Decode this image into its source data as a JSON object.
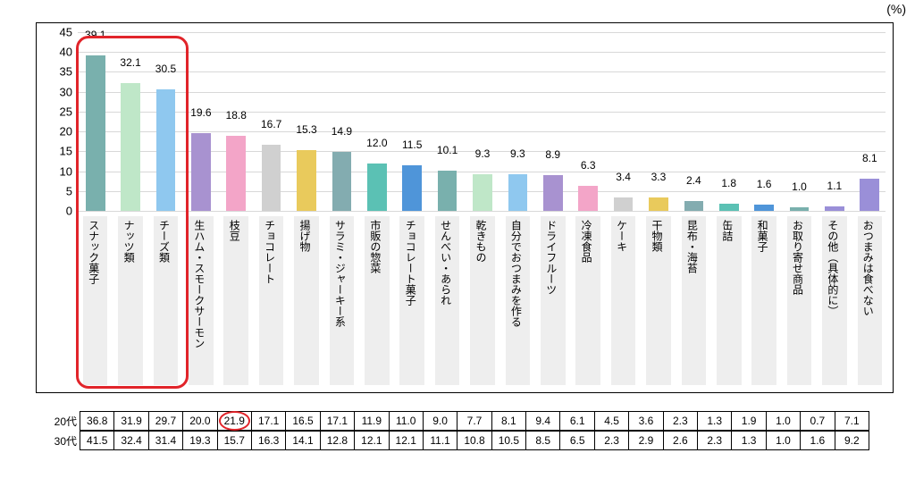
{
  "chart": {
    "type": "bar",
    "unit": "(%)",
    "ylim": [
      0,
      45
    ],
    "ytick_step": 5,
    "bar_width_ratio": 0.55,
    "categories": [
      "スナック菓子",
      "ナッツ類",
      "チーズ類",
      "生ハム・スモークサーモン",
      "枝豆",
      "チョコレート",
      "揚げ物",
      "サラミ・ジャーキー系",
      "市販の惣菜",
      "チョコレート菓子",
      "せんべい・あられ",
      "乾きもの",
      "自分でおつまみを作る",
      "ドライフルーツ",
      "冷凍食品",
      "ケーキ",
      "干物類",
      "昆布・海苔",
      "缶詰",
      "和菓子",
      "お取り寄せ商品",
      "その他（具体的に）",
      "おつまみは食べない"
    ],
    "values": [
      39.1,
      32.1,
      30.5,
      19.6,
      18.8,
      16.7,
      15.3,
      14.9,
      12.0,
      11.5,
      10.1,
      9.3,
      9.3,
      8.9,
      6.3,
      3.4,
      3.3,
      2.4,
      1.8,
      1.6,
      1.0,
      1.1,
      8.1
    ],
    "bar_colors": [
      "#79b0ad",
      "#bfe7c8",
      "#8fc8ef",
      "#a892d0",
      "#f3a5c8",
      "#d0d0d0",
      "#e9ca5c",
      "#83acb0",
      "#5bc1b4",
      "#4f95d9",
      "#79b0ad",
      "#bfe7c8",
      "#8fc8ef",
      "#a892d0",
      "#f3a5c8",
      "#d0d0d0",
      "#e9ca5c",
      "#83acb0",
      "#5bc1b4",
      "#4f95d9",
      "#79b0ad",
      "#9a8fd8",
      "#9a8fd8"
    ],
    "label_bg": "#eeeeee",
    "grid_color": "#d8d8d8",
    "highlight_box": {
      "from": 0,
      "to": 2,
      "color": "#e1242a"
    },
    "label_fontsize": 12
  },
  "table": {
    "row_headers": [
      "20代",
      "30代"
    ],
    "rows": [
      [
        36.8,
        31.9,
        29.7,
        20.0,
        21.9,
        17.1,
        16.5,
        17.1,
        11.9,
        11.0,
        9.0,
        7.7,
        8.1,
        9.4,
        6.1,
        4.5,
        3.6,
        2.3,
        1.3,
        1.9,
        1.0,
        0.7,
        7.1
      ],
      [
        41.5,
        32.4,
        31.4,
        19.3,
        15.7,
        16.3,
        14.1,
        12.8,
        12.1,
        12.1,
        11.1,
        10.8,
        10.5,
        8.5,
        6.5,
        2.3,
        2.9,
        2.6,
        2.3,
        1.3,
        1.0,
        1.6,
        9.2
      ]
    ],
    "circle_cell": {
      "row": 0,
      "col": 4
    }
  }
}
